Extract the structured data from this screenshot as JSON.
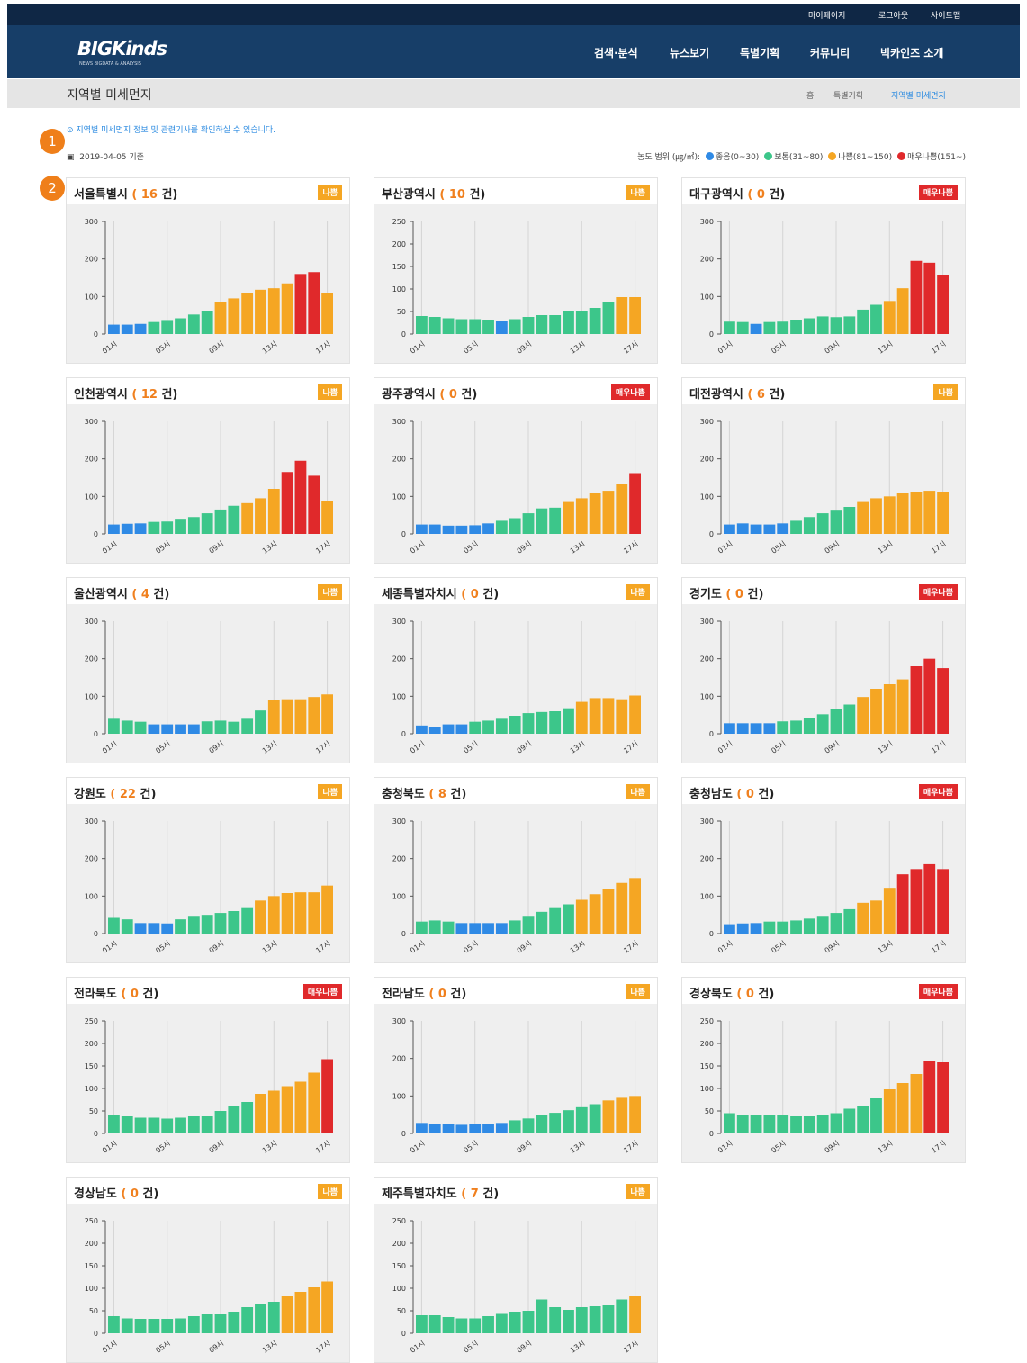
{
  "header": {
    "top_links": [
      "마이페이지",
      "로그아웃",
      "사이트맵"
    ],
    "logo": "BIGKinds",
    "logo_sub": "NEWS BIGDATA & ANALYSIS",
    "menu": [
      "검색·분석",
      "뉴스보기",
      "특별기획",
      "커뮤니티",
      "빅카인즈 소개"
    ]
  },
  "page": {
    "title": "지역별 미세먼지",
    "breadcrumb": [
      "홈",
      "특별기획",
      "지역별 미세먼지"
    ],
    "info": "지역별 미세먼지 정보 및 관련기사를 확인하실 수 있습니다.",
    "date": "2019-04-05 기준",
    "annotations": [
      "1",
      "2"
    ]
  },
  "legend": {
    "label": "농도 범위 (㎍/㎥):",
    "items": [
      {
        "label": "좋음(0~30)",
        "color": "#2f8ae5",
        "max": 30
      },
      {
        "label": "보통(31~80)",
        "color": "#3cc68a",
        "min": 31,
        "max": 80
      },
      {
        "label": "나쁨(81~150)",
        "color": "#f5a623",
        "min": 81,
        "max": 150
      },
      {
        "label": "매우나쁨(151~)",
        "color": "#e0292b",
        "min": 151
      }
    ]
  },
  "chart_data": [
    {
      "type": "bar",
      "name": "서울특별시",
      "count": 16,
      "count_unit": "건",
      "badge": "나쁨",
      "badge_color": "#f5a623",
      "categories": [
        "01시",
        null,
        null,
        null,
        "05시",
        null,
        null,
        null,
        "09시",
        null,
        null,
        null,
        "13시",
        null,
        null,
        null,
        "17시"
      ],
      "values": [
        25,
        25,
        27,
        32,
        35,
        42,
        52,
        62,
        85,
        95,
        110,
        118,
        122,
        135,
        160,
        165,
        110
      ],
      "ylim": [
        0,
        300
      ],
      "yticks": [
        0,
        100,
        200,
        300
      ]
    },
    {
      "type": "bar",
      "name": "부산광역시",
      "count": 10,
      "count_unit": "건",
      "badge": "나쁨",
      "badge_color": "#f5a623",
      "categories": [
        "01시",
        null,
        null,
        null,
        "05시",
        null,
        null,
        null,
        "09시",
        null,
        null,
        null,
        "13시",
        null,
        null,
        null,
        "17시"
      ],
      "values": [
        40,
        38,
        35,
        33,
        33,
        32,
        28,
        33,
        38,
        42,
        42,
        50,
        52,
        58,
        72,
        82,
        82
      ],
      "ylim": [
        0,
        250
      ],
      "yticks": [
        0,
        50,
        100,
        150,
        200,
        250
      ]
    },
    {
      "type": "bar",
      "name": "대구광역시",
      "count": 0,
      "count_unit": "건",
      "badge": "매우나쁨",
      "badge_color": "#e0292b",
      "categories": [
        "01시",
        null,
        null,
        null,
        "05시",
        null,
        null,
        null,
        "09시",
        null,
        null,
        null,
        "13시",
        null,
        null,
        null,
        "17시"
      ],
      "values": [
        33,
        32,
        27,
        32,
        33,
        37,
        42,
        47,
        45,
        47,
        65,
        78,
        88,
        122,
        195,
        190,
        158
      ],
      "ylim": [
        0,
        300
      ],
      "yticks": [
        0,
        100,
        200,
        300
      ]
    },
    {
      "type": "bar",
      "name": "인천광역시",
      "count": 12,
      "count_unit": "건",
      "badge": "나쁨",
      "badge_color": "#f5a623",
      "categories": [
        "01시",
        null,
        null,
        null,
        "05시",
        null,
        null,
        null,
        "09시",
        null,
        null,
        null,
        "13시",
        null,
        null,
        null,
        "17시"
      ],
      "values": [
        25,
        27,
        28,
        32,
        33,
        38,
        45,
        55,
        65,
        75,
        82,
        95,
        120,
        165,
        195,
        155,
        88
      ],
      "ylim": [
        0,
        300
      ],
      "yticks": [
        0,
        100,
        200,
        300
      ]
    },
    {
      "type": "bar",
      "name": "광주광역시",
      "count": 0,
      "count_unit": "건",
      "badge": "매우나쁨",
      "badge_color": "#e0292b",
      "categories": [
        "01시",
        null,
        null,
        null,
        "05시",
        null,
        null,
        null,
        "09시",
        null,
        null,
        null,
        "13시",
        null,
        null,
        null,
        "17시"
      ],
      "values": [
        25,
        25,
        22,
        22,
        23,
        28,
        35,
        42,
        55,
        68,
        70,
        85,
        95,
        108,
        115,
        132,
        162
      ],
      "ylim": [
        0,
        300
      ],
      "yticks": [
        0,
        100,
        200,
        300
      ]
    },
    {
      "type": "bar",
      "name": "대전광역시",
      "count": 6,
      "count_unit": "건",
      "badge": "나쁨",
      "badge_color": "#f5a623",
      "categories": [
        "01시",
        null,
        null,
        null,
        "05시",
        null,
        null,
        null,
        "09시",
        null,
        null,
        null,
        "13시",
        null,
        null,
        null,
        "17시"
      ],
      "values": [
        25,
        28,
        25,
        25,
        28,
        35,
        45,
        55,
        62,
        72,
        85,
        95,
        100,
        108,
        112,
        115,
        112
      ],
      "ylim": [
        0,
        300
      ],
      "yticks": [
        0,
        100,
        200,
        300
      ]
    },
    {
      "type": "bar",
      "name": "울산광역시",
      "count": 4,
      "count_unit": "건",
      "badge": "나쁨",
      "badge_color": "#f5a623",
      "categories": [
        "01시",
        null,
        null,
        null,
        "05시",
        null,
        null,
        null,
        "09시",
        null,
        null,
        null,
        "13시",
        null,
        null,
        null,
        "17시"
      ],
      "values": [
        40,
        35,
        32,
        25,
        25,
        25,
        25,
        33,
        35,
        32,
        40,
        62,
        90,
        92,
        92,
        98,
        105
      ],
      "ylim": [
        0,
        300
      ],
      "yticks": [
        0,
        100,
        200,
        300
      ]
    },
    {
      "type": "bar",
      "name": "세종특별자치시",
      "count": 0,
      "count_unit": "건",
      "badge": "나쁨",
      "badge_color": "#f5a623",
      "categories": [
        "01시",
        null,
        null,
        null,
        "05시",
        null,
        null,
        null,
        "09시",
        null,
        null,
        null,
        "13시",
        null,
        null,
        null,
        "17시"
      ],
      "values": [
        22,
        18,
        25,
        25,
        32,
        35,
        40,
        48,
        55,
        58,
        60,
        68,
        85,
        95,
        95,
        92,
        102
      ],
      "ylim": [
        0,
        300
      ],
      "yticks": [
        0,
        100,
        200,
        300
      ]
    },
    {
      "type": "bar",
      "name": "경기도",
      "count": 0,
      "count_unit": "건",
      "badge": "매우나쁨",
      "badge_color": "#e0292b",
      "categories": [
        "01시",
        null,
        null,
        null,
        "05시",
        null,
        null,
        null,
        "09시",
        null,
        null,
        null,
        "13시",
        null,
        null,
        null,
        "17시"
      ],
      "values": [
        28,
        28,
        28,
        28,
        33,
        35,
        42,
        52,
        65,
        78,
        98,
        120,
        132,
        145,
        180,
        200,
        175
      ],
      "ylim": [
        0,
        300
      ],
      "yticks": [
        0,
        100,
        200,
        300
      ]
    },
    {
      "type": "bar",
      "name": "강원도",
      "count": 22,
      "count_unit": "건",
      "badge": "나쁨",
      "badge_color": "#f5a623",
      "categories": [
        "01시",
        null,
        null,
        null,
        "05시",
        null,
        null,
        null,
        "09시",
        null,
        null,
        null,
        "13시",
        null,
        null,
        null,
        "17시"
      ],
      "values": [
        42,
        38,
        28,
        28,
        27,
        38,
        45,
        50,
        55,
        60,
        68,
        88,
        100,
        108,
        110,
        110,
        128
      ],
      "ylim": [
        0,
        300
      ],
      "yticks": [
        0,
        100,
        200,
        300
      ]
    },
    {
      "type": "bar",
      "name": "충청북도",
      "count": 8,
      "count_unit": "건",
      "badge": "나쁨",
      "badge_color": "#f5a623",
      "categories": [
        "01시",
        null,
        null,
        null,
        "05시",
        null,
        null,
        null,
        "09시",
        null,
        null,
        null,
        "13시",
        null,
        null,
        null,
        "17시"
      ],
      "values": [
        32,
        35,
        32,
        28,
        28,
        28,
        28,
        35,
        45,
        58,
        68,
        78,
        90,
        105,
        120,
        135,
        148
      ],
      "ylim": [
        0,
        300
      ],
      "yticks": [
        0,
        100,
        200,
        300
      ]
    },
    {
      "type": "bar",
      "name": "충청남도",
      "count": 0,
      "count_unit": "건",
      "badge": "매우나쁨",
      "badge_color": "#e0292b",
      "categories": [
        "01시",
        null,
        null,
        null,
        "05시",
        null,
        null,
        null,
        "09시",
        null,
        null,
        null,
        "13시",
        null,
        null,
        null,
        "17시"
      ],
      "values": [
        25,
        27,
        28,
        32,
        32,
        35,
        40,
        45,
        55,
        65,
        82,
        88,
        122,
        158,
        172,
        185,
        172
      ],
      "ylim": [
        0,
        300
      ],
      "yticks": [
        0,
        100,
        200,
        300
      ]
    },
    {
      "type": "bar",
      "name": "전라북도",
      "count": 0,
      "count_unit": "건",
      "badge": "매우나쁨",
      "badge_color": "#e0292b",
      "categories": [
        "01시",
        null,
        null,
        null,
        "05시",
        null,
        null,
        null,
        "09시",
        null,
        null,
        null,
        "13시",
        null,
        null,
        null,
        "17시"
      ],
      "values": [
        40,
        38,
        35,
        35,
        33,
        35,
        38,
        38,
        50,
        60,
        70,
        88,
        95,
        105,
        115,
        135,
        165
      ],
      "ylim": [
        0,
        250
      ],
      "yticks": [
        0,
        50,
        100,
        150,
        200,
        250
      ]
    },
    {
      "type": "bar",
      "name": "전라남도",
      "count": 0,
      "count_unit": "건",
      "badge": "나쁨",
      "badge_color": "#f5a623",
      "categories": [
        "01시",
        null,
        null,
        null,
        "05시",
        null,
        null,
        null,
        "09시",
        null,
        null,
        null,
        "13시",
        null,
        null,
        null,
        "17시"
      ],
      "values": [
        28,
        25,
        25,
        23,
        25,
        25,
        28,
        35,
        40,
        48,
        55,
        62,
        70,
        78,
        88,
        95,
        100
      ],
      "ylim": [
        0,
        300
      ],
      "yticks": [
        0,
        100,
        200,
        300
      ]
    },
    {
      "type": "bar",
      "name": "경상북도",
      "count": 0,
      "count_unit": "건",
      "badge": "매우나쁨",
      "badge_color": "#e0292b",
      "categories": [
        "01시",
        null,
        null,
        null,
        "05시",
        null,
        null,
        null,
        "09시",
        null,
        null,
        null,
        "13시",
        null,
        null,
        null,
        "17시"
      ],
      "values": [
        45,
        42,
        42,
        40,
        40,
        38,
        38,
        40,
        45,
        55,
        62,
        78,
        98,
        112,
        132,
        162,
        158
      ],
      "ylim": [
        0,
        250
      ],
      "yticks": [
        0,
        50,
        100,
        150,
        200,
        250
      ]
    },
    {
      "type": "bar",
      "name": "경상남도",
      "count": 0,
      "count_unit": "건",
      "badge": "나쁨",
      "badge_color": "#f5a623",
      "categories": [
        "01시",
        null,
        null,
        null,
        "05시",
        null,
        null,
        null,
        "09시",
        null,
        null,
        null,
        "13시",
        null,
        null,
        null,
        "17시"
      ],
      "values": [
        38,
        33,
        32,
        32,
        32,
        33,
        38,
        42,
        42,
        48,
        58,
        65,
        70,
        82,
        92,
        102,
        115
      ],
      "ylim": [
        0,
        250
      ],
      "yticks": [
        0,
        50,
        100,
        150,
        200,
        250
      ]
    },
    {
      "type": "bar",
      "name": "제주특별자치도",
      "count": 7,
      "count_unit": "건",
      "badge": "나쁨",
      "badge_color": "#f5a623",
      "categories": [
        "01시",
        null,
        null,
        null,
        "05시",
        null,
        null,
        null,
        "09시",
        null,
        null,
        null,
        "13시",
        null,
        null,
        null,
        "17시"
      ],
      "values": [
        40,
        40,
        36,
        33,
        33,
        38,
        43,
        48,
        50,
        75,
        58,
        52,
        58,
        60,
        62,
        75,
        82
      ],
      "ylim": [
        0,
        250
      ],
      "yticks": [
        0,
        50,
        100,
        150,
        200,
        250
      ]
    }
  ]
}
